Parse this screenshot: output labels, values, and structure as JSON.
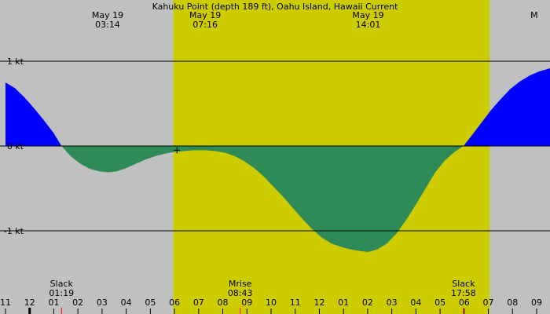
{
  "chart_data": {
    "type": "area",
    "title": "Kahuku Point (depth 189 ft), Oahu Island, Hawaii Current",
    "unit": "kt",
    "xlim": [
      -13.0,
      9.6
    ],
    "ylim": [
      -1.75,
      1.7
    ],
    "y_ticks": [
      {
        "value": 1,
        "label": "1 kt"
      },
      {
        "value": 0,
        "label": "0 kt"
      },
      {
        "value": -1,
        "label": "-1 kt"
      }
    ],
    "x_ticks": [
      {
        "value": -13,
        "label": "11"
      },
      {
        "value": -12,
        "label": "12"
      },
      {
        "value": -11,
        "label": "01"
      },
      {
        "value": -10,
        "label": "02"
      },
      {
        "value": -9,
        "label": "03"
      },
      {
        "value": -8,
        "label": "04"
      },
      {
        "value": -7,
        "label": "05"
      },
      {
        "value": -6,
        "label": "06"
      },
      {
        "value": -5,
        "label": "07"
      },
      {
        "value": -4,
        "label": "08"
      },
      {
        "value": -3,
        "label": "09"
      },
      {
        "value": -2,
        "label": "10"
      },
      {
        "value": -1,
        "label": "11"
      },
      {
        "value": 0,
        "label": "12"
      },
      {
        "value": 1,
        "label": "01"
      },
      {
        "value": 2,
        "label": "02"
      },
      {
        "value": 3,
        "label": "03"
      },
      {
        "value": 4,
        "label": "04"
      },
      {
        "value": 5,
        "label": "05"
      },
      {
        "value": 6,
        "label": "06"
      },
      {
        "value": 7,
        "label": "07"
      },
      {
        "value": 8,
        "label": "08"
      },
      {
        "value": 9,
        "label": "09"
      }
    ],
    "day_band": {
      "start": -6.05,
      "end": 7.05
    },
    "top_events": [
      {
        "date": "May 19",
        "time": "03:14",
        "x": -8.77
      },
      {
        "date": "May 19",
        "time": "07:16",
        "x": -4.73
      },
      {
        "date": "May 19",
        "time": "14:01",
        "x": 2.02
      },
      {
        "date": "M",
        "time": "",
        "x": 8.9
      }
    ],
    "bottom_events": [
      {
        "label": "Slack",
        "time": "01:19",
        "x": -10.68
      },
      {
        "label": "Mrise",
        "time": "08:43",
        "x": -3.28
      },
      {
        "label": "Slack",
        "time": "17:58",
        "x": 5.97
      }
    ],
    "marker": {
      "x": -5.9,
      "y": -0.05
    },
    "series": [
      {
        "x": [
          -13.0,
          -12.6,
          -12.2,
          -11.8,
          -11.4,
          -11.0,
          -10.68,
          -10.3,
          -9.9,
          -9.5,
          -9.1,
          -8.77,
          -8.4,
          -8.0,
          -7.6,
          -7.2,
          -6.8,
          -6.4,
          -6.0,
          -5.6,
          -5.2,
          -4.73,
          -4.3,
          -3.9,
          -3.5,
          -3.1,
          -2.7,
          -2.3,
          -1.9,
          -1.5,
          -1.1,
          -0.7,
          -0.3,
          0.1,
          0.5,
          0.9,
          1.3,
          1.7,
          2.02,
          2.4,
          2.8,
          3.2,
          3.6,
          4.0,
          4.4,
          4.8,
          5.2,
          5.6,
          5.97,
          6.3,
          6.7,
          7.1,
          7.5,
          7.9,
          8.3,
          8.7,
          9.1,
          9.6
        ],
        "y": [
          0.75,
          0.68,
          0.57,
          0.44,
          0.3,
          0.15,
          0.0,
          -0.12,
          -0.21,
          -0.27,
          -0.3,
          -0.31,
          -0.3,
          -0.26,
          -0.21,
          -0.16,
          -0.12,
          -0.09,
          -0.07,
          -0.06,
          -0.05,
          -0.05,
          -0.06,
          -0.08,
          -0.12,
          -0.18,
          -0.26,
          -0.36,
          -0.48,
          -0.6,
          -0.73,
          -0.86,
          -0.98,
          -1.08,
          -1.15,
          -1.19,
          -1.22,
          -1.24,
          -1.25,
          -1.22,
          -1.15,
          -1.03,
          -0.87,
          -0.69,
          -0.5,
          -0.31,
          -0.17,
          -0.07,
          0.0,
          0.12,
          0.27,
          0.42,
          0.55,
          0.67,
          0.76,
          0.83,
          0.88,
          0.92
        ]
      }
    ],
    "colors": {
      "background": "#c0c0c0",
      "day_band": "#cccc00",
      "flood": "#0000ff",
      "ebb": "#2e8b57",
      "gridline": "#000000",
      "tick_red": "#ff0000"
    }
  }
}
